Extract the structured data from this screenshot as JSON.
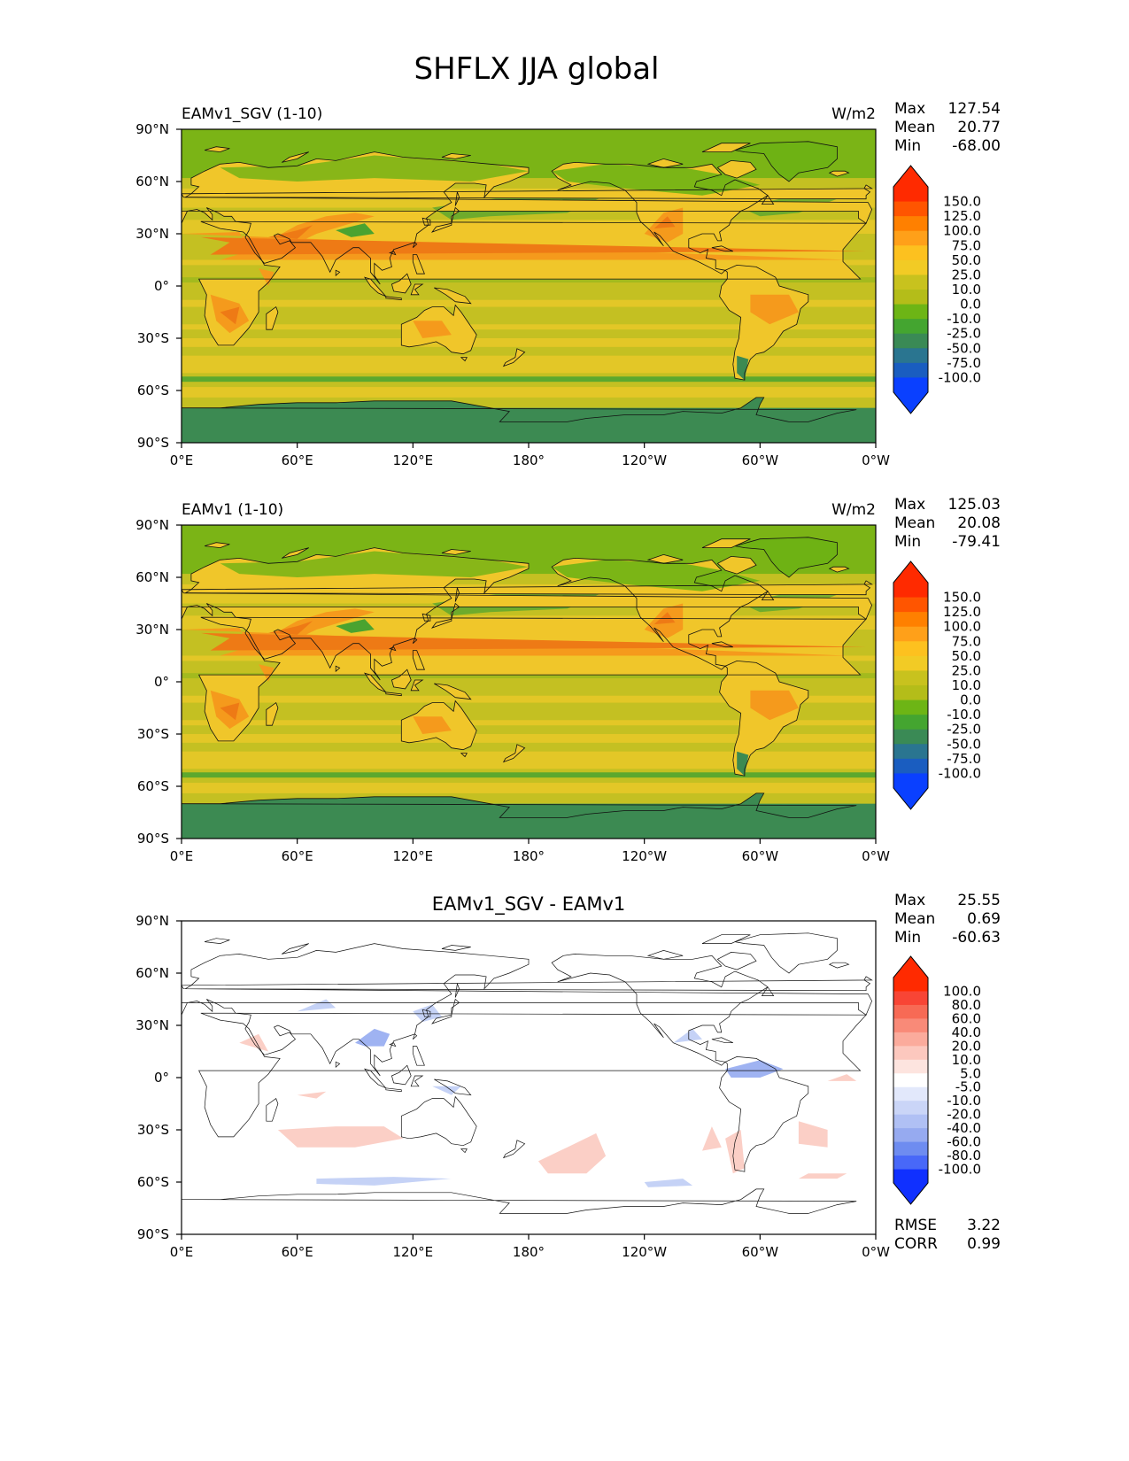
{
  "figure_title": "SHFLX JJA global",
  "panels": [
    {
      "id": "test",
      "title_left": "EAMv1_SGV (1-10)",
      "title_center": "",
      "units": "W/m2",
      "stats": {
        "max_label": "Max",
        "max": "127.54",
        "mean_label": "Mean",
        "mean": "20.77",
        "min_label": "Min",
        "min": "-68.00"
      },
      "colorbar": {
        "labels": [
          "150.0",
          "125.0",
          "100.0",
          "75.0",
          "50.0",
          "25.0",
          "10.0",
          "0.0",
          "-10.0",
          "-25.0",
          "-50.0",
          "-75.0",
          "-100.0"
        ],
        "colors": [
          "#ff2a00",
          "#ff5500",
          "#ff8000",
          "#ffa019",
          "#fdc11f",
          "#f2cb25",
          "#c8c21e",
          "#b4bd19",
          "#6db515",
          "#44a530",
          "#3a8a55",
          "#2a7590",
          "#1a5dc0",
          "#0a40ff",
          "#ff2a00"
        ]
      },
      "terms": {
        "warm_interior": "#f0c62a",
        "hot_desert": "#f59a1c",
        "hot_core": "#ee7a15",
        "ocean": "#c4c022",
        "ocean_warm": "#e9c828",
        "ocean_cool": "#9db91d",
        "arctic": "#6eb214",
        "antarctic": "#3c8a52",
        "cool_patch": "#4aa330"
      }
    },
    {
      "id": "ref",
      "title_left": "EAMv1 (1-10)",
      "title_center": "",
      "units": "W/m2",
      "stats": {
        "max_label": "Max",
        "max": "125.03",
        "mean_label": "Mean",
        "mean": "20.08",
        "min_label": "Min",
        "min": "-79.41"
      },
      "colorbar": {
        "labels": [
          "150.0",
          "125.0",
          "100.0",
          "75.0",
          "50.0",
          "25.0",
          "10.0",
          "0.0",
          "-10.0",
          "-25.0",
          "-50.0",
          "-75.0",
          "-100.0"
        ],
        "colors": [
          "#ff2a00",
          "#ff5500",
          "#ff8000",
          "#ffa019",
          "#fdc11f",
          "#f2cb25",
          "#c8c21e",
          "#b4bd19",
          "#6db515",
          "#44a530",
          "#3a8a55",
          "#2a7590",
          "#1a5dc0",
          "#0a40ff",
          "#ff2a00"
        ]
      },
      "terms": {
        "warm_interior": "#f0c62a",
        "hot_desert": "#f59a1c",
        "hot_core": "#ee7a15",
        "ocean": "#c4c022",
        "ocean_warm": "#e9c828",
        "ocean_cool": "#9db91d",
        "arctic": "#6eb214",
        "antarctic": "#3c8a52",
        "cool_patch": "#4aa330"
      }
    },
    {
      "id": "diff",
      "title_left": "",
      "title_center": "EAMv1_SGV - EAMv1",
      "units": "",
      "stats": {
        "max_label": "Max",
        "max": "25.55",
        "mean_label": "Mean",
        "mean": "0.69",
        "min_label": "Min",
        "min": "-60.63"
      },
      "colorbar": {
        "labels": [
          "100.0",
          "80.0",
          "60.0",
          "40.0",
          "20.0",
          "10.0",
          "5.0",
          "-5.0",
          "-10.0",
          "-20.0",
          "-40.0",
          "-60.0",
          "-80.0",
          "-100.0"
        ],
        "colors": [
          "#ff2a00",
          "#f84535",
          "#f76a55",
          "#f98a78",
          "#fbab9c",
          "#fcc8be",
          "#fde4df",
          "#ffffff",
          "#e2e8fb",
          "#cad5f7",
          "#b0c0f4",
          "#96aaf0",
          "#6e8cf0",
          "#4868f8",
          "#1030ff",
          "#ff2a00"
        ]
      },
      "rmse_label": "RMSE",
      "rmse": "3.22",
      "corr_label": "CORR",
      "corr": "0.99"
    }
  ],
  "axes": {
    "lat_ticks": [
      "90°N",
      "60°N",
      "30°N",
      "0°",
      "30°S",
      "60°S",
      "90°S"
    ],
    "lon_ticks": [
      "0°E",
      "60°E",
      "120°E",
      "180°",
      "120°W",
      "60°W",
      "0°W"
    ]
  },
  "colors": {
    "coastline": "#111111",
    "frame": "#000000",
    "diff_pos": "#fbcfc6",
    "diff_neg": "#c5d2f6",
    "diff_neg_strong": "#9fb3f2"
  }
}
